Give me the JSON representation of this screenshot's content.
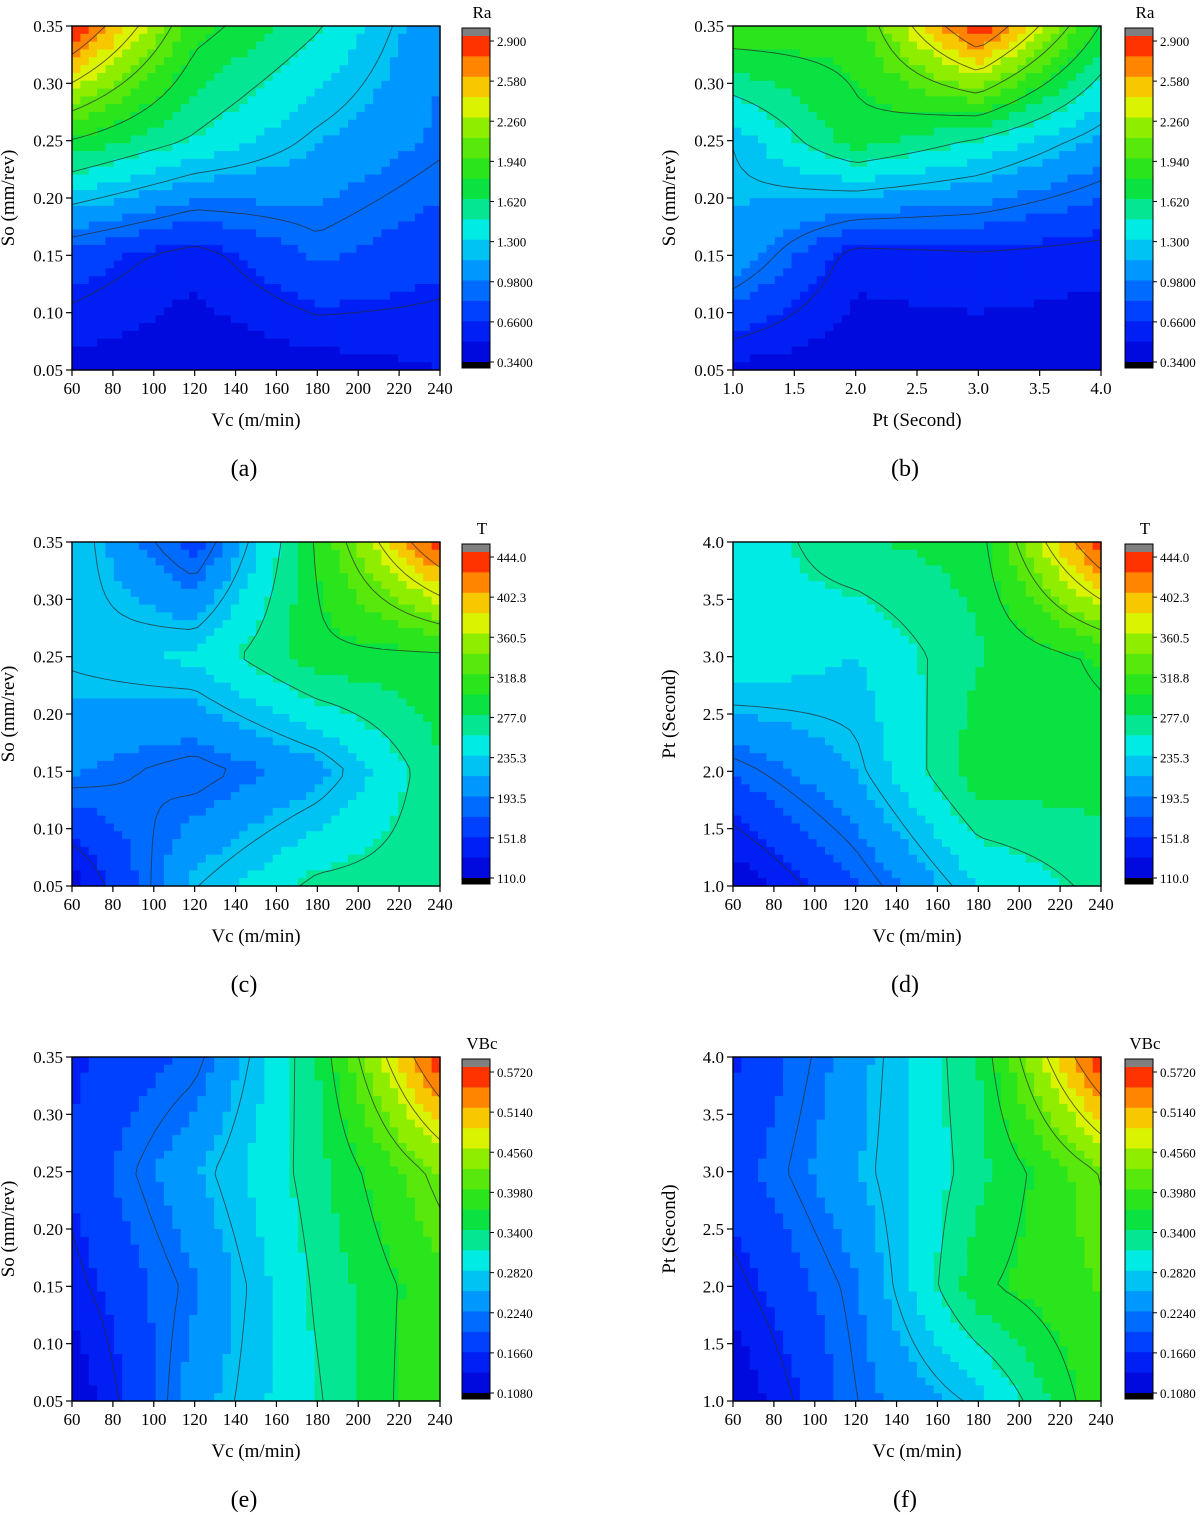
{
  "chart_data": [
    {
      "type": "contour",
      "panel_label": "(a)",
      "xlabel": "Vc (m/min)",
      "ylabel": "So (mm/rev)",
      "x_ticks": [
        "60",
        "80",
        "100",
        "120",
        "140",
        "160",
        "180",
        "200",
        "220",
        "240"
      ],
      "y_ticks": [
        "0.05",
        "0.10",
        "0.15",
        "0.20",
        "0.25",
        "0.30",
        "0.35"
      ],
      "xlim": [
        60,
        240
      ],
      "ylim": [
        0.05,
        0.35
      ],
      "colorbar_title": "Ra",
      "colorbar_ticks": [
        "2.900",
        "2.580",
        "2.260",
        "1.940",
        "1.620",
        "1.300",
        "0.9800",
        "0.6600",
        "0.3400"
      ],
      "colorbar_range": [
        0.34,
        2.9
      ],
      "x_grid": [
        60,
        120,
        180,
        240
      ],
      "y_grid": [
        0.05,
        0.15,
        0.25,
        0.35
      ],
      "z": [
        [
          0.45,
          0.38,
          0.42,
          0.5
        ],
        [
          0.75,
          0.55,
          0.85,
          0.7
        ],
        [
          1.75,
          1.45,
          1.15,
          0.95
        ],
        [
          2.9,
          1.85,
          1.5,
          1.0
        ]
      ]
    },
    {
      "type": "contour",
      "panel_label": "(b)",
      "xlabel": "Pt (Second)",
      "ylabel": "So (mm/rev)",
      "x_ticks": [
        "1.0",
        "1.5",
        "2.0",
        "2.5",
        "3.0",
        "3.5",
        "4.0"
      ],
      "y_ticks": [
        "0.05",
        "0.10",
        "0.15",
        "0.20",
        "0.25",
        "0.30",
        "0.35"
      ],
      "xlim": [
        1.0,
        4.0
      ],
      "ylim": [
        0.05,
        0.35
      ],
      "colorbar_title": "Ra",
      "colorbar_ticks": [
        "2.900",
        "2.580",
        "2.260",
        "1.940",
        "1.620",
        "1.300",
        "0.9800",
        "0.6600",
        "0.3400"
      ],
      "colorbar_range": [
        0.34,
        2.9
      ],
      "x_grid": [
        1.0,
        2.0,
        3.0,
        4.0
      ],
      "y_grid": [
        0.05,
        0.15,
        0.25,
        0.35
      ],
      "z": [
        [
          0.45,
          0.4,
          0.4,
          0.38
        ],
        [
          1.1,
          0.55,
          0.6,
          0.55
        ],
        [
          1.2,
          1.7,
          1.45,
          1.1
        ],
        [
          1.9,
          1.85,
          2.9,
          1.75
        ]
      ]
    },
    {
      "type": "contour",
      "panel_label": "(c)",
      "xlabel": "Vc (m/min)",
      "ylabel": "So (mm/rev)",
      "x_ticks": [
        "60",
        "80",
        "100",
        "120",
        "140",
        "160",
        "180",
        "200",
        "220",
        "240"
      ],
      "y_ticks": [
        "0.05",
        "0.10",
        "0.15",
        "0.20",
        "0.25",
        "0.30",
        "0.35"
      ],
      "xlim": [
        60,
        240
      ],
      "ylim": [
        0.05,
        0.35
      ],
      "colorbar_title": "T",
      "colorbar_ticks": [
        "444.0",
        "402.3",
        "360.5",
        "318.8",
        "277.0",
        "235.3",
        "193.5",
        "151.8",
        "110.0"
      ],
      "colorbar_range": [
        110.0,
        444.0
      ],
      "x_grid": [
        60,
        120,
        180,
        240
      ],
      "y_grid": [
        0.05,
        0.15,
        0.25,
        0.35
      ],
      "z": [
        [
          120,
          220,
          265,
          270
        ],
        [
          195,
          175,
          205,
          275
        ],
        [
          225,
          240,
          290,
          290
        ],
        [
          235,
          160,
          300,
          440
        ]
      ]
    },
    {
      "type": "contour",
      "panel_label": "(d)",
      "xlabel": "Vc (m/min)",
      "ylabel": "Pt (Second)",
      "x_ticks": [
        "60",
        "80",
        "100",
        "120",
        "140",
        "160",
        "180",
        "200",
        "220",
        "240"
      ],
      "y_ticks": [
        "1.0",
        "1.5",
        "2.0",
        "2.5",
        "3.0",
        "3.5",
        "4.0"
      ],
      "xlim": [
        60,
        240
      ],
      "ylim": [
        1.0,
        4.0
      ],
      "colorbar_title": "T",
      "colorbar_ticks": [
        "444.0",
        "402.3",
        "360.5",
        "318.8",
        "277.0",
        "235.3",
        "193.5",
        "151.8",
        "110.0"
      ],
      "colorbar_range": [
        110.0,
        444.0
      ],
      "x_grid": [
        60,
        120,
        180,
        240
      ],
      "y_grid": [
        1.0,
        2.0,
        3.0,
        4.0
      ],
      "z": [
        [
          115,
          170,
          235,
          265
        ],
        [
          175,
          215,
          290,
          285
        ],
        [
          255,
          235,
          275,
          300
        ],
        [
          240,
          275,
          285,
          440
        ]
      ]
    },
    {
      "type": "contour",
      "panel_label": "(e)",
      "xlabel": "Vc (m/min)",
      "ylabel": "So (mm/rev)",
      "x_ticks": [
        "60",
        "80",
        "100",
        "120",
        "140",
        "160",
        "180",
        "200",
        "220",
        "240"
      ],
      "y_ticks": [
        "0.05",
        "0.10",
        "0.15",
        "0.20",
        "0.25",
        "0.30",
        "0.35"
      ],
      "xlim": [
        60,
        240
      ],
      "ylim": [
        0.05,
        0.35
      ],
      "colorbar_title": "VBc",
      "colorbar_ticks": [
        "0.5720",
        "0.5140",
        "0.4560",
        "0.3980",
        "0.3400",
        "0.2820",
        "0.2240",
        "0.1660",
        "0.1080"
      ],
      "colorbar_range": [
        0.108,
        0.572
      ],
      "x_grid": [
        60,
        120,
        180,
        240
      ],
      "y_grid": [
        0.05,
        0.15,
        0.25,
        0.35
      ],
      "z": [
        [
          0.11,
          0.24,
          0.31,
          0.4
        ],
        [
          0.15,
          0.22,
          0.32,
          0.39
        ],
        [
          0.17,
          0.25,
          0.33,
          0.43
        ],
        [
          0.16,
          0.2,
          0.34,
          0.57
        ]
      ]
    },
    {
      "type": "contour",
      "panel_label": "(f)",
      "xlabel": "Vc (m/min)",
      "ylabel": "Pt (Second)",
      "x_ticks": [
        "60",
        "80",
        "100",
        "120",
        "140",
        "160",
        "180",
        "200",
        "220",
        "240"
      ],
      "y_ticks": [
        "1.0",
        "1.5",
        "2.0",
        "2.5",
        "3.0",
        "3.5",
        "4.0"
      ],
      "xlim": [
        60,
        240
      ],
      "ylim": [
        1.0,
        4.0
      ],
      "colorbar_title": "VBc",
      "colorbar_ticks": [
        "0.5720",
        "0.5140",
        "0.4560",
        "0.3980",
        "0.3400",
        "0.2820",
        "0.2240",
        "0.1660",
        "0.1080"
      ],
      "colorbar_range": [
        0.108,
        0.572
      ],
      "x_grid": [
        60,
        120,
        180,
        240
      ],
      "y_grid": [
        1.0,
        2.0,
        3.0,
        4.0
      ],
      "z": [
        [
          0.11,
          0.21,
          0.27,
          0.39
        ],
        [
          0.15,
          0.22,
          0.36,
          0.4
        ],
        [
          0.18,
          0.25,
          0.33,
          0.42
        ],
        [
          0.16,
          0.24,
          0.34,
          0.57
        ]
      ]
    }
  ]
}
